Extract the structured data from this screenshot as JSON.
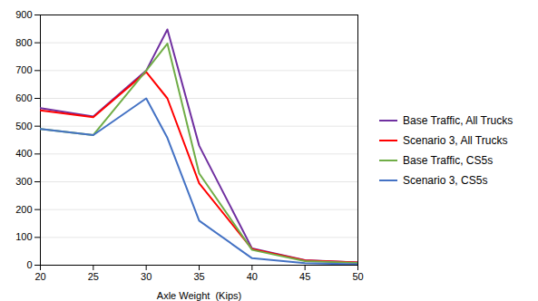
{
  "chart_data": {
    "type": "line",
    "xlabel": "Axle Weight  (Kips)",
    "x": [
      20,
      25,
      30,
      32,
      35,
      40,
      45,
      50
    ],
    "series": [
      {
        "name": "Base Traffic, All Trucks",
        "color": "#7030A0",
        "values": [
          565,
          535,
          700,
          848,
          430,
          60,
          18,
          10
        ]
      },
      {
        "name": "Scenario 3, All Trucks",
        "color": "#FF0000",
        "values": [
          557,
          532,
          695,
          600,
          295,
          58,
          17,
          10
        ]
      },
      {
        "name": "Base Traffic, CS5s",
        "color": "#70AD47",
        "values": [
          490,
          468,
          700,
          797,
          330,
          55,
          15,
          8
        ]
      },
      {
        "name": "Scenario 3, CS5s",
        "color": "#4472C4",
        "values": [
          490,
          468,
          600,
          458,
          160,
          25,
          7,
          3
        ]
      }
    ],
    "xlim": [
      20,
      50
    ],
    "ylim": [
      0,
      900
    ],
    "xticks": [
      20,
      25,
      30,
      35,
      40,
      45,
      50
    ],
    "yticks": [
      0,
      100,
      200,
      300,
      400,
      500,
      600,
      700,
      800,
      900
    ],
    "grid": true,
    "legend": "right"
  }
}
